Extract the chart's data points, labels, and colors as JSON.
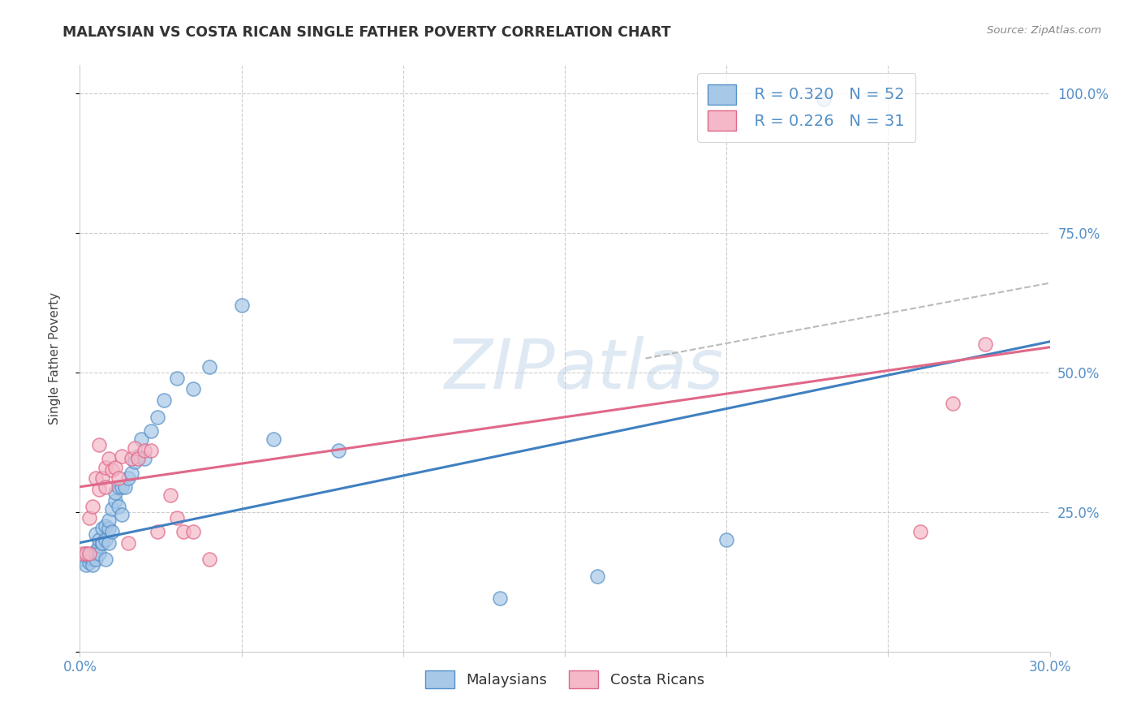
{
  "title": "MALAYSIAN VS COSTA RICAN SINGLE FATHER POVERTY CORRELATION CHART",
  "source": "Source: ZipAtlas.com",
  "ylabel": "Single Father Poverty",
  "xlim": [
    0.0,
    0.3
  ],
  "ylim": [
    0.0,
    1.05
  ],
  "legend_text_blue": "R = 0.320   N = 52",
  "legend_text_pink": "R = 0.226   N = 31",
  "legend_label_blue": "Malaysians",
  "legend_label_pink": "Costa Ricans",
  "blue_fill": "#A8C8E8",
  "pink_fill": "#F4B8C8",
  "blue_edge": "#5590C8",
  "pink_edge": "#E06888",
  "blue_line": "#4080C0",
  "pink_line": "#E06888",
  "dashed_line_color": "#BBBBBB",
  "grid_color": "#CCCCCC",
  "right_tick_color": "#5590C8",
  "bottom_tick_color": "#5590C8",
  "malaysian_x": [
    0.001,
    0.002,
    0.002,
    0.003,
    0.003,
    0.004,
    0.004,
    0.004,
    0.005,
    0.005,
    0.005,
    0.005,
    0.006,
    0.006,
    0.006,
    0.007,
    0.007,
    0.007,
    0.008,
    0.008,
    0.008,
    0.009,
    0.009,
    0.009,
    0.01,
    0.01,
    0.011,
    0.011,
    0.012,
    0.012,
    0.013,
    0.013,
    0.014,
    0.015,
    0.016,
    0.017,
    0.018,
    0.019,
    0.02,
    0.022,
    0.024,
    0.026,
    0.03,
    0.035,
    0.04,
    0.05,
    0.06,
    0.08,
    0.13,
    0.16,
    0.2,
    0.23
  ],
  "malaysian_y": [
    0.165,
    0.175,
    0.155,
    0.16,
    0.17,
    0.165,
    0.175,
    0.155,
    0.18,
    0.175,
    0.165,
    0.21,
    0.19,
    0.2,
    0.175,
    0.195,
    0.22,
    0.195,
    0.165,
    0.2,
    0.225,
    0.195,
    0.22,
    0.235,
    0.215,
    0.255,
    0.27,
    0.285,
    0.26,
    0.295,
    0.295,
    0.245,
    0.295,
    0.31,
    0.32,
    0.34,
    0.35,
    0.38,
    0.345,
    0.395,
    0.42,
    0.45,
    0.49,
    0.47,
    0.51,
    0.62,
    0.38,
    0.36,
    0.095,
    0.135,
    0.2,
    0.99
  ],
  "costa_rican_x": [
    0.001,
    0.002,
    0.003,
    0.003,
    0.004,
    0.005,
    0.006,
    0.006,
    0.007,
    0.008,
    0.008,
    0.009,
    0.01,
    0.011,
    0.012,
    0.013,
    0.015,
    0.016,
    0.017,
    0.018,
    0.02,
    0.022,
    0.024,
    0.028,
    0.03,
    0.032,
    0.035,
    0.04,
    0.26,
    0.27,
    0.28
  ],
  "costa_rican_y": [
    0.175,
    0.175,
    0.24,
    0.175,
    0.26,
    0.31,
    0.29,
    0.37,
    0.31,
    0.33,
    0.295,
    0.345,
    0.325,
    0.33,
    0.31,
    0.35,
    0.195,
    0.345,
    0.365,
    0.345,
    0.36,
    0.36,
    0.215,
    0.28,
    0.24,
    0.215,
    0.215,
    0.165,
    0.215,
    0.445,
    0.55
  ],
  "blue_trend_x0": 0.0,
  "blue_trend_x1": 0.3,
  "blue_trend_y0": 0.195,
  "blue_trend_y1": 0.555,
  "pink_trend_x0": 0.0,
  "pink_trend_x1": 0.3,
  "pink_trend_y0": 0.295,
  "pink_trend_y1": 0.545,
  "dash_trend_x0": 0.175,
  "dash_trend_x1": 0.3,
  "dash_trend_y0": 0.525,
  "dash_trend_y1": 0.66,
  "watermark_text": "ZIPatlas",
  "watermark_color": "#C0D4E8"
}
